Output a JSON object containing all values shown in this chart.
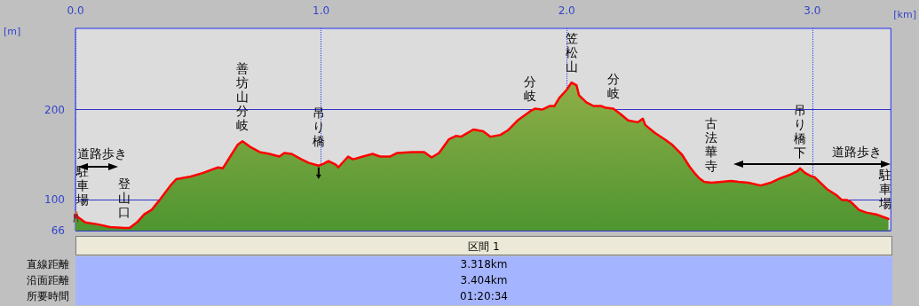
{
  "chart_data": {
    "type": "area",
    "xlabel": "[km]",
    "ylabel": "[m]",
    "x": [
      0,
      0.04,
      0.09,
      0.14,
      0.2,
      0.22,
      0.25,
      0.28,
      0.31,
      0.34,
      0.39,
      0.41,
      0.47,
      0.52,
      0.58,
      0.6,
      0.63,
      0.66,
      0.68,
      0.71,
      0.75,
      0.79,
      0.83,
      0.85,
      0.88,
      0.92,
      0.95,
      0.99,
      1.01,
      1.03,
      1.06,
      1.07,
      1.11,
      1.13,
      1.17,
      1.21,
      1.24,
      1.28,
      1.31,
      1.37,
      1.42,
      1.45,
      1.48,
      1.52,
      1.55,
      1.57,
      1.62,
      1.66,
      1.69,
      1.73,
      1.76,
      1.8,
      1.85,
      1.87,
      1.9,
      1.93,
      1.95,
      1.97,
      2.0,
      2.02,
      2.04,
      2.05,
      2.08,
      2.11,
      2.14,
      2.16,
      2.19,
      2.22,
      2.25,
      2.29,
      2.31,
      2.32,
      2.36,
      2.4,
      2.43,
      2.47,
      2.5,
      2.52,
      2.54,
      2.56,
      2.59,
      2.63,
      2.67,
      2.7,
      2.74,
      2.79,
      2.83,
      2.87,
      2.91,
      2.94,
      2.95,
      2.97,
      2.99,
      3.01,
      3.06,
      3.1,
      3.12,
      3.14,
      3.16,
      3.19,
      3.22,
      3.26,
      3.3,
      3.31
    ],
    "series": [
      {
        "color": "#ff0000",
        "values": [
          83,
          75,
          73,
          70,
          69,
          69,
          75,
          84,
          89,
          99,
          117,
          123,
          126,
          130,
          136,
          135,
          148,
          161,
          165,
          159,
          153,
          151,
          148,
          152,
          151,
          145,
          141,
          138,
          140,
          143,
          139,
          136,
          148,
          145,
          148,
          151,
          148,
          148,
          152,
          153,
          153,
          147,
          152,
          167,
          171,
          170,
          178,
          176,
          170,
          172,
          177,
          188,
          198,
          201,
          200,
          204,
          204,
          213,
          222,
          230,
          227,
          216,
          208,
          204,
          204,
          202,
          201,
          195,
          188,
          186,
          190,
          183,
          174,
          167,
          161,
          150,
          137,
          130,
          124,
          120,
          119,
          120,
          121,
          120,
          119,
          116,
          119,
          124,
          128,
          132,
          135,
          130,
          127,
          125,
          112,
          105,
          100,
          100,
          97,
          89,
          86,
          84,
          80,
          79
        ]
      }
    ],
    "xlim": [
      0,
      3.32
    ],
    "ylim": [
      66,
      290
    ],
    "xticks": [
      {
        "value": 0,
        "label": "0.0"
      },
      {
        "value": 1,
        "label": "1.0"
      },
      {
        "value": 2,
        "label": "2.0"
      },
      {
        "value": 3,
        "label": "3.0"
      }
    ],
    "yticks": [
      66,
      100,
      200
    ],
    "grid": true,
    "annotations": [
      {
        "text": "駐車場",
        "x": 0,
        "y": 83
      },
      {
        "text": "登山口",
        "x": 0.2,
        "y": 69
      },
      {
        "text": "善坊山分岐",
        "x": 0.68,
        "y": 165
      },
      {
        "text": "吊り橋",
        "x": 0.99,
        "y": 138
      },
      {
        "text": "分岐",
        "x": 1.85,
        "y": 198
      },
      {
        "text": "笠松山",
        "x": 2.02,
        "y": 230
      },
      {
        "text": "分岐",
        "x": 2.19,
        "y": 201
      },
      {
        "text": "古法華寺",
        "x": 2.59,
        "y": 120
      },
      {
        "text": "吊り橋下",
        "x": 2.95,
        "y": 135
      },
      {
        "text": "駐車場",
        "x": 3.31,
        "y": 79
      },
      "道路歩き",
      "道路歩き",
      "区間 1",
      "直線距離",
      "3.318km",
      "沿面距離",
      "3.404km",
      "所要時間",
      "01:20:34"
    ]
  }
}
